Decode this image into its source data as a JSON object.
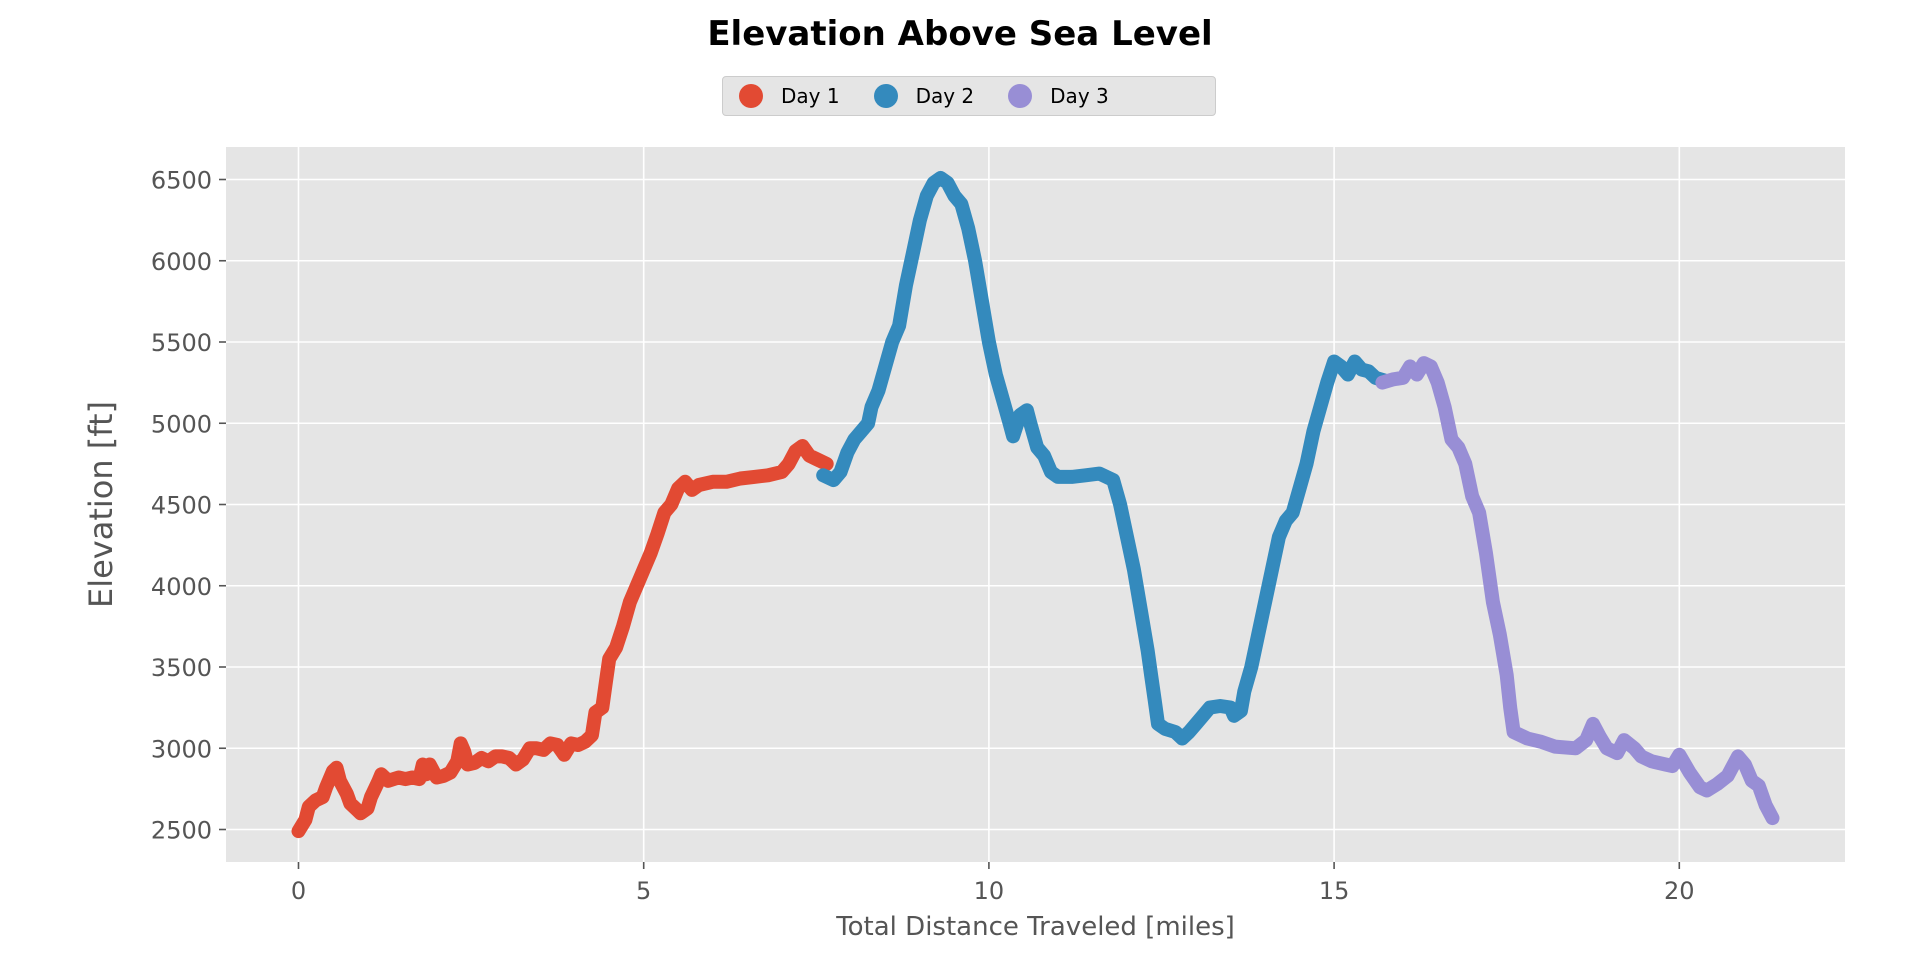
{
  "chart_data": {
    "type": "line",
    "title": "Elevation Above Sea Level",
    "xlabel": "Total Distance Traveled [miles]",
    "ylabel": "Elevation [ft]",
    "xlim": [
      -1.05,
      22.4
    ],
    "ylim": [
      2300,
      6700
    ],
    "xticks": [
      0,
      5,
      10,
      15,
      20
    ],
    "yticks": [
      2500,
      3000,
      3500,
      4000,
      4500,
      5000,
      5500,
      6000,
      6500
    ],
    "grid": true,
    "legend_position": "top-center",
    "series": [
      {
        "name": "Day 1",
        "color": "#E24A33",
        "points": [
          [
            0,
            2490
          ],
          [
            0.1,
            2560
          ],
          [
            0.15,
            2640
          ],
          [
            0.25,
            2680
          ],
          [
            0.35,
            2700
          ],
          [
            0.4,
            2760
          ],
          [
            0.5,
            2860
          ],
          [
            0.55,
            2880
          ],
          [
            0.6,
            2800
          ],
          [
            0.7,
            2720
          ],
          [
            0.75,
            2660
          ],
          [
            0.85,
            2620
          ],
          [
            0.9,
            2600
          ],
          [
            1.0,
            2630
          ],
          [
            1.05,
            2700
          ],
          [
            1.15,
            2790
          ],
          [
            1.2,
            2840
          ],
          [
            1.3,
            2800
          ],
          [
            1.45,
            2820
          ],
          [
            1.55,
            2810
          ],
          [
            1.65,
            2820
          ],
          [
            1.75,
            2810
          ],
          [
            1.8,
            2900
          ],
          [
            1.85,
            2840
          ],
          [
            1.9,
            2900
          ],
          [
            2.0,
            2820
          ],
          [
            2.1,
            2830
          ],
          [
            2.2,
            2850
          ],
          [
            2.3,
            2920
          ],
          [
            2.35,
            3030
          ],
          [
            2.4,
            2980
          ],
          [
            2.45,
            2900
          ],
          [
            2.55,
            2910
          ],
          [
            2.65,
            2940
          ],
          [
            2.75,
            2920
          ],
          [
            2.85,
            2950
          ],
          [
            2.95,
            2950
          ],
          [
            3.05,
            2940
          ],
          [
            3.15,
            2900
          ],
          [
            3.25,
            2930
          ],
          [
            3.35,
            3000
          ],
          [
            3.45,
            3000
          ],
          [
            3.55,
            2990
          ],
          [
            3.65,
            3030
          ],
          [
            3.75,
            3020
          ],
          [
            3.85,
            2960
          ],
          [
            3.95,
            3030
          ],
          [
            4.05,
            3020
          ],
          [
            4.15,
            3040
          ],
          [
            4.25,
            3080
          ],
          [
            4.3,
            3220
          ],
          [
            4.4,
            3250
          ],
          [
            4.45,
            3400
          ],
          [
            4.5,
            3550
          ],
          [
            4.6,
            3620
          ],
          [
            4.7,
            3750
          ],
          [
            4.8,
            3900
          ],
          [
            4.9,
            4000
          ],
          [
            5.0,
            4100
          ],
          [
            5.1,
            4200
          ],
          [
            5.2,
            4320
          ],
          [
            5.3,
            4450
          ],
          [
            5.4,
            4500
          ],
          [
            5.5,
            4600
          ],
          [
            5.6,
            4640
          ],
          [
            5.7,
            4590
          ],
          [
            5.8,
            4620
          ],
          [
            6.0,
            4640
          ],
          [
            6.2,
            4640
          ],
          [
            6.4,
            4660
          ],
          [
            6.6,
            4670
          ],
          [
            6.8,
            4680
          ],
          [
            7.0,
            4700
          ],
          [
            7.1,
            4750
          ],
          [
            7.2,
            4830
          ],
          [
            7.3,
            4860
          ],
          [
            7.4,
            4800
          ],
          [
            7.5,
            4780
          ],
          [
            7.65,
            4750
          ]
        ]
      },
      {
        "name": "Day 2",
        "color": "#348ABD",
        "points": [
          [
            7.6,
            4680
          ],
          [
            7.75,
            4650
          ],
          [
            7.85,
            4700
          ],
          [
            7.95,
            4820
          ],
          [
            8.05,
            4900
          ],
          [
            8.15,
            4950
          ],
          [
            8.25,
            5000
          ],
          [
            8.3,
            5100
          ],
          [
            8.4,
            5200
          ],
          [
            8.5,
            5350
          ],
          [
            8.6,
            5500
          ],
          [
            8.7,
            5600
          ],
          [
            8.8,
            5850
          ],
          [
            8.9,
            6050
          ],
          [
            9.0,
            6250
          ],
          [
            9.1,
            6400
          ],
          [
            9.2,
            6480
          ],
          [
            9.3,
            6510
          ],
          [
            9.4,
            6480
          ],
          [
            9.5,
            6400
          ],
          [
            9.6,
            6350
          ],
          [
            9.7,
            6200
          ],
          [
            9.8,
            6000
          ],
          [
            9.9,
            5750
          ],
          [
            10.0,
            5500
          ],
          [
            10.1,
            5300
          ],
          [
            10.2,
            5150
          ],
          [
            10.3,
            5000
          ],
          [
            10.35,
            4920
          ],
          [
            10.45,
            5050
          ],
          [
            10.55,
            5080
          ],
          [
            10.6,
            5000
          ],
          [
            10.7,
            4850
          ],
          [
            10.8,
            4800
          ],
          [
            10.9,
            4700
          ],
          [
            11.0,
            4670
          ],
          [
            11.2,
            4670
          ],
          [
            11.4,
            4680
          ],
          [
            11.6,
            4690
          ],
          [
            11.8,
            4650
          ],
          [
            11.9,
            4500
          ],
          [
            12.0,
            4300
          ],
          [
            12.1,
            4100
          ],
          [
            12.2,
            3850
          ],
          [
            12.3,
            3600
          ],
          [
            12.35,
            3450
          ],
          [
            12.4,
            3300
          ],
          [
            12.45,
            3150
          ],
          [
            12.55,
            3120
          ],
          [
            12.7,
            3100
          ],
          [
            12.8,
            3060
          ],
          [
            12.9,
            3100
          ],
          [
            13.0,
            3150
          ],
          [
            13.1,
            3200
          ],
          [
            13.2,
            3250
          ],
          [
            13.35,
            3260
          ],
          [
            13.5,
            3250
          ],
          [
            13.55,
            3200
          ],
          [
            13.65,
            3230
          ],
          [
            13.7,
            3350
          ],
          [
            13.8,
            3500
          ],
          [
            13.9,
            3700
          ],
          [
            14.0,
            3900
          ],
          [
            14.1,
            4100
          ],
          [
            14.2,
            4300
          ],
          [
            14.3,
            4400
          ],
          [
            14.4,
            4450
          ],
          [
            14.5,
            4600
          ],
          [
            14.6,
            4750
          ],
          [
            14.7,
            4950
          ],
          [
            14.8,
            5100
          ],
          [
            14.9,
            5250
          ],
          [
            15.0,
            5380
          ],
          [
            15.1,
            5350
          ],
          [
            15.2,
            5300
          ],
          [
            15.3,
            5380
          ],
          [
            15.4,
            5330
          ],
          [
            15.5,
            5320
          ],
          [
            15.6,
            5280
          ],
          [
            15.75,
            5260
          ]
        ]
      },
      {
        "name": "Day 3",
        "color": "#988ED5",
        "points": [
          [
            15.7,
            5250
          ],
          [
            15.85,
            5270
          ],
          [
            16.0,
            5280
          ],
          [
            16.1,
            5350
          ],
          [
            16.2,
            5300
          ],
          [
            16.3,
            5370
          ],
          [
            16.4,
            5350
          ],
          [
            16.5,
            5250
          ],
          [
            16.6,
            5100
          ],
          [
            16.7,
            4900
          ],
          [
            16.8,
            4850
          ],
          [
            16.9,
            4750
          ],
          [
            17.0,
            4550
          ],
          [
            17.1,
            4450
          ],
          [
            17.2,
            4200
          ],
          [
            17.3,
            3900
          ],
          [
            17.4,
            3700
          ],
          [
            17.5,
            3450
          ],
          [
            17.55,
            3250
          ],
          [
            17.6,
            3100
          ],
          [
            17.8,
            3060
          ],
          [
            18.0,
            3040
          ],
          [
            18.2,
            3010
          ],
          [
            18.5,
            3000
          ],
          [
            18.65,
            3050
          ],
          [
            18.75,
            3150
          ],
          [
            18.85,
            3070
          ],
          [
            18.95,
            3000
          ],
          [
            19.1,
            2970
          ],
          [
            19.2,
            3050
          ],
          [
            19.35,
            3000
          ],
          [
            19.45,
            2950
          ],
          [
            19.6,
            2920
          ],
          [
            19.8,
            2900
          ],
          [
            19.9,
            2890
          ],
          [
            20.0,
            2960
          ],
          [
            20.15,
            2850
          ],
          [
            20.3,
            2760
          ],
          [
            20.4,
            2740
          ],
          [
            20.55,
            2780
          ],
          [
            20.7,
            2830
          ],
          [
            20.85,
            2950
          ],
          [
            20.95,
            2900
          ],
          [
            21.05,
            2800
          ],
          [
            21.15,
            2770
          ],
          [
            21.25,
            2650
          ],
          [
            21.35,
            2570
          ]
        ]
      }
    ]
  }
}
